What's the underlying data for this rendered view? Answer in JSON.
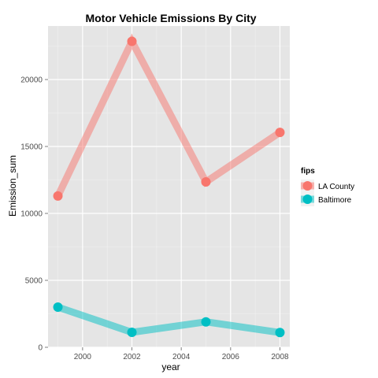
{
  "chart_data": {
    "type": "line",
    "title": "Motor Vehicle Emissions By City",
    "xlabel": "year",
    "ylabel": "Emission_sum",
    "x": [
      1999,
      2002,
      2005,
      2008
    ],
    "xlim": [
      1998.6,
      2008.4
    ],
    "ylim": [
      0,
      24000
    ],
    "x_ticks": [
      2000,
      2002,
      2004,
      2006,
      2008
    ],
    "y_ticks": [
      0,
      5000,
      10000,
      15000,
      20000
    ],
    "grid": true,
    "legend": {
      "title": "fips",
      "position": "right"
    },
    "series": [
      {
        "name": "LA County",
        "color": "#F8766D",
        "values": [
          11300,
          22850,
          12350,
          16050
        ]
      },
      {
        "name": "Baltimore",
        "color": "#00BFC4",
        "values": [
          3000,
          1120,
          1900,
          1100
        ]
      }
    ]
  }
}
